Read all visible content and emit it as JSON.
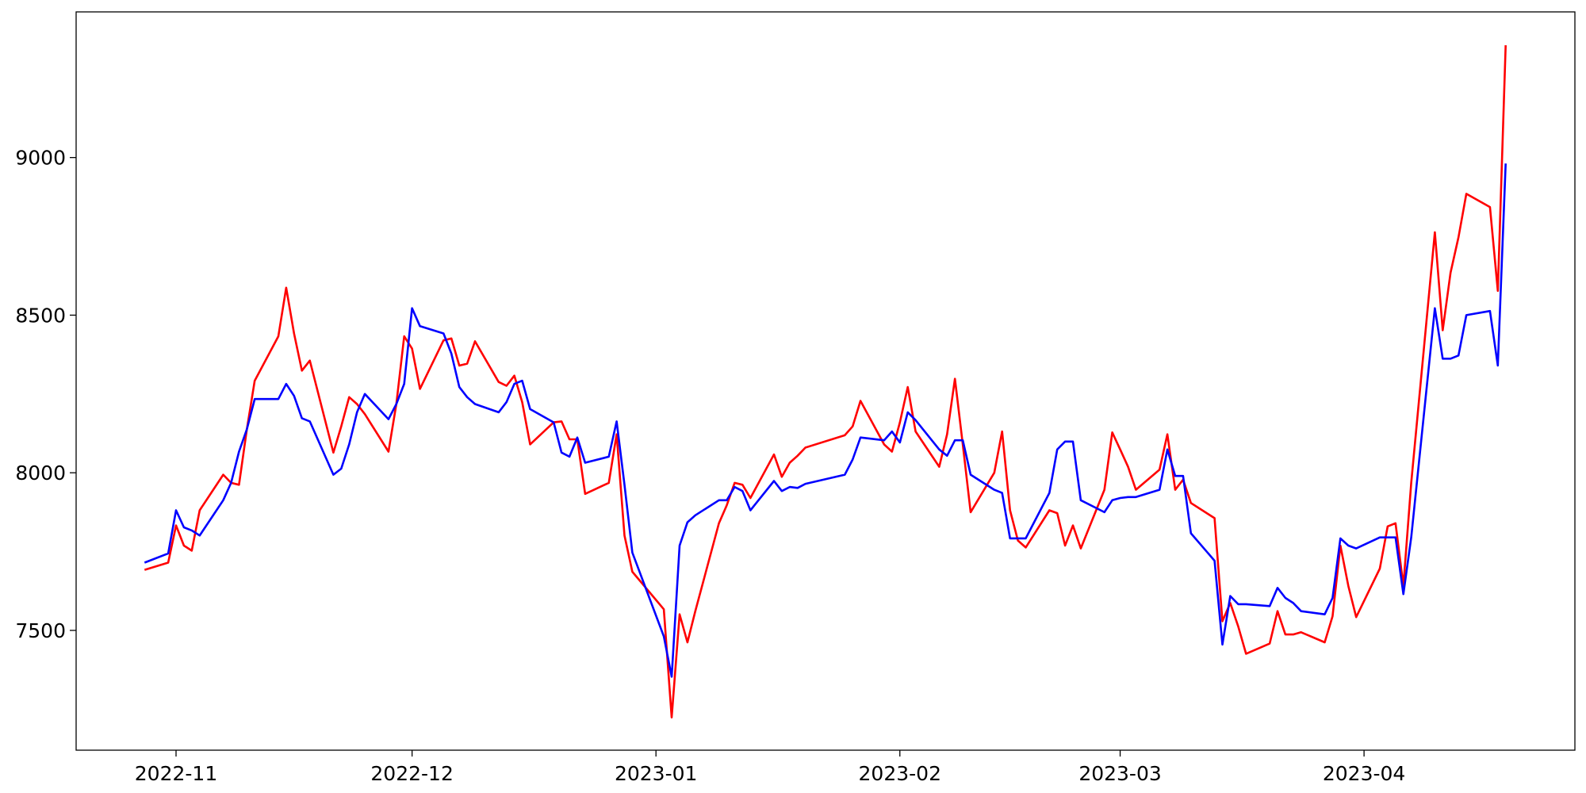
{
  "chart_data": {
    "type": "line",
    "x": [
      -4,
      -1,
      0,
      1,
      2,
      3,
      6,
      7,
      8,
      9,
      10,
      13,
      14,
      15,
      16,
      17,
      20,
      21,
      22,
      23,
      24,
      27,
      28,
      29,
      30,
      31,
      34,
      35,
      36,
      37,
      38,
      41,
      42,
      43,
      44,
      45,
      48,
      49,
      50,
      51,
      52,
      55,
      56,
      57,
      58,
      62,
      63,
      64,
      65,
      66,
      69,
      70,
      71,
      72,
      73,
      76,
      77,
      78,
      79,
      80,
      85,
      86,
      87,
      90,
      91,
      92,
      93,
      94,
      97,
      98,
      99,
      100,
      101,
      104,
      105,
      106,
      107,
      108,
      111,
      112,
      113,
      114,
      115,
      118,
      119,
      120,
      121,
      122,
      125,
      126,
      127,
      128,
      129,
      132,
      133,
      134,
      135,
      136,
      139,
      140,
      141,
      142,
      143,
      146,
      147,
      148,
      149,
      150,
      153,
      154,
      155,
      156,
      157,
      160,
      161,
      162,
      163,
      164,
      167,
      168,
      169
    ],
    "series": [
      {
        "color": "#ff0000",
        "values": [
          7692,
          7715,
          7833,
          7769,
          7753,
          7881,
          7994,
          7968,
          7962,
          8138,
          8292,
          8433,
          8587,
          8442,
          8324,
          8356,
          8064,
          8147,
          8240,
          8218,
          8186,
          8067,
          8218,
          8433,
          8394,
          8266,
          8420,
          8426,
          8340,
          8346,
          8417,
          8288,
          8276,
          8308,
          8224,
          8090,
          8160,
          8163,
          8106,
          8106,
          7933,
          7968,
          8122,
          7801,
          7686,
          7567,
          7224,
          7551,
          7462,
          7561,
          7840,
          7897,
          7968,
          7962,
          7920,
          8058,
          7987,
          8032,
          8054,
          8080,
          8119,
          8147,
          8228,
          8090,
          8067,
          8160,
          8272,
          8131,
          8019,
          8122,
          8298,
          8090,
          7875,
          8000,
          8131,
          7881,
          7785,
          7763,
          7881,
          7872,
          7769,
          7833,
          7760,
          7946,
          8128,
          8074,
          8019,
          7946,
          8010,
          8122,
          7946,
          7978,
          7904,
          7856,
          7529,
          7587,
          7513,
          7426,
          7458,
          7561,
          7487,
          7487,
          7494,
          7462,
          7545,
          7769,
          7641,
          7542,
          7696,
          7830,
          7840,
          7641,
          7968,
          8763,
          8452,
          8635,
          8747,
          8885,
          8843,
          8577,
          9356
        ]
      },
      {
        "color": "#0000ff",
        "values": [
          7715,
          7744,
          7881,
          7827,
          7817,
          7801,
          7913,
          7968,
          8067,
          8138,
          8234,
          8234,
          8282,
          8244,
          8173,
          8163,
          7994,
          8013,
          8090,
          8192,
          8250,
          8170,
          8218,
          8282,
          8522,
          8465,
          8442,
          8378,
          8272,
          8240,
          8218,
          8192,
          8224,
          8282,
          8292,
          8202,
          8160,
          8064,
          8051,
          8112,
          8032,
          8051,
          8163,
          7962,
          7747,
          7481,
          7353,
          7769,
          7843,
          7865,
          7913,
          7913,
          7955,
          7942,
          7881,
          7974,
          7942,
          7955,
          7952,
          7965,
          7994,
          8042,
          8112,
          8103,
          8131,
          8096,
          8192,
          8167,
          8074,
          8054,
          8103,
          8103,
          7994,
          7946,
          7936,
          7792,
          7792,
          7792,
          7936,
          8074,
          8099,
          8099,
          7913,
          7875,
          7913,
          7920,
          7923,
          7923,
          7946,
          8074,
          7990,
          7990,
          7808,
          7721,
          7455,
          7609,
          7583,
          7583,
          7577,
          7635,
          7603,
          7587,
          7561,
          7551,
          7603,
          7792,
          7769,
          7760,
          7795,
          7795,
          7795,
          7615,
          7795,
          8522,
          8362,
          8362,
          8372,
          8500,
          8513,
          8340,
          8981
        ]
      }
    ],
    "xlim": [
      -12.7,
      177.8
    ],
    "xticks": [
      {
        "value": 0,
        "label": "2022-11"
      },
      {
        "value": 30,
        "label": "2022-12"
      },
      {
        "value": 61,
        "label": "2023-01"
      },
      {
        "value": 92,
        "label": "2023-02"
      },
      {
        "value": 120,
        "label": "2023-03"
      },
      {
        "value": 151,
        "label": "2023-04"
      }
    ],
    "ylim": [
      7120,
      9462
    ],
    "yticks": [
      7500,
      8000,
      8500,
      9000
    ],
    "grid": false
  }
}
